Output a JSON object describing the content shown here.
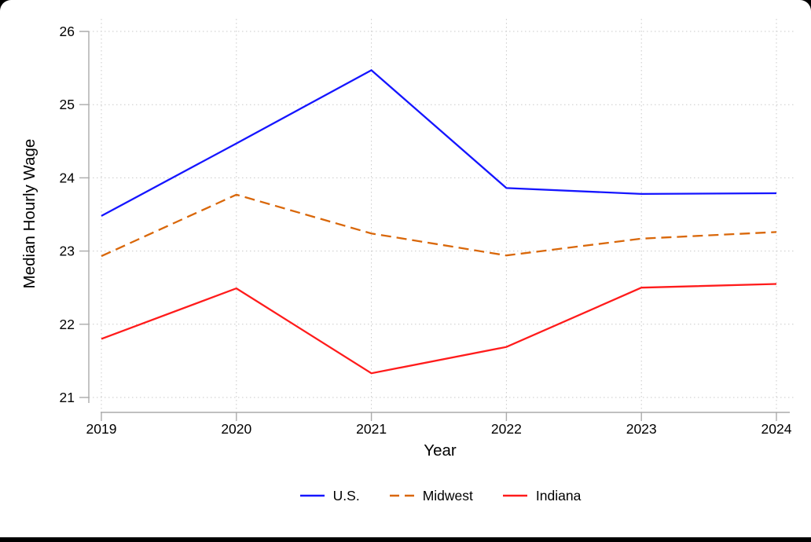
{
  "chart_data": {
    "type": "line",
    "title": "",
    "xlabel": "Year",
    "ylabel": "Median Hourly Wage",
    "x": [
      2019,
      2020,
      2021,
      2022,
      2023,
      2024
    ],
    "y_ticks": [
      21,
      22,
      23,
      24,
      25,
      26
    ],
    "ylim": [
      21,
      26
    ],
    "grid": true,
    "grid_style": "dotted",
    "legend_position": "bottom-center",
    "series": [
      {
        "name": "U.S.",
        "color": "#1515ff",
        "style": "solid",
        "values": [
          23.48,
          24.47,
          25.47,
          23.86,
          23.78,
          23.79
        ]
      },
      {
        "name": "Midwest",
        "color": "#d96709",
        "style": "dashed",
        "values": [
          22.93,
          23.77,
          23.24,
          22.94,
          23.17,
          23.26
        ]
      },
      {
        "name": "Indiana",
        "color": "#ff1b1b",
        "style": "solid",
        "values": [
          21.8,
          22.49,
          21.33,
          21.69,
          22.5,
          22.55
        ]
      }
    ],
    "colors": {
      "grid": "#c9c9c9",
      "axis": "#ababab",
      "text": "#000000",
      "background": "#ffffff",
      "bottom_bar": "#000000"
    }
  }
}
